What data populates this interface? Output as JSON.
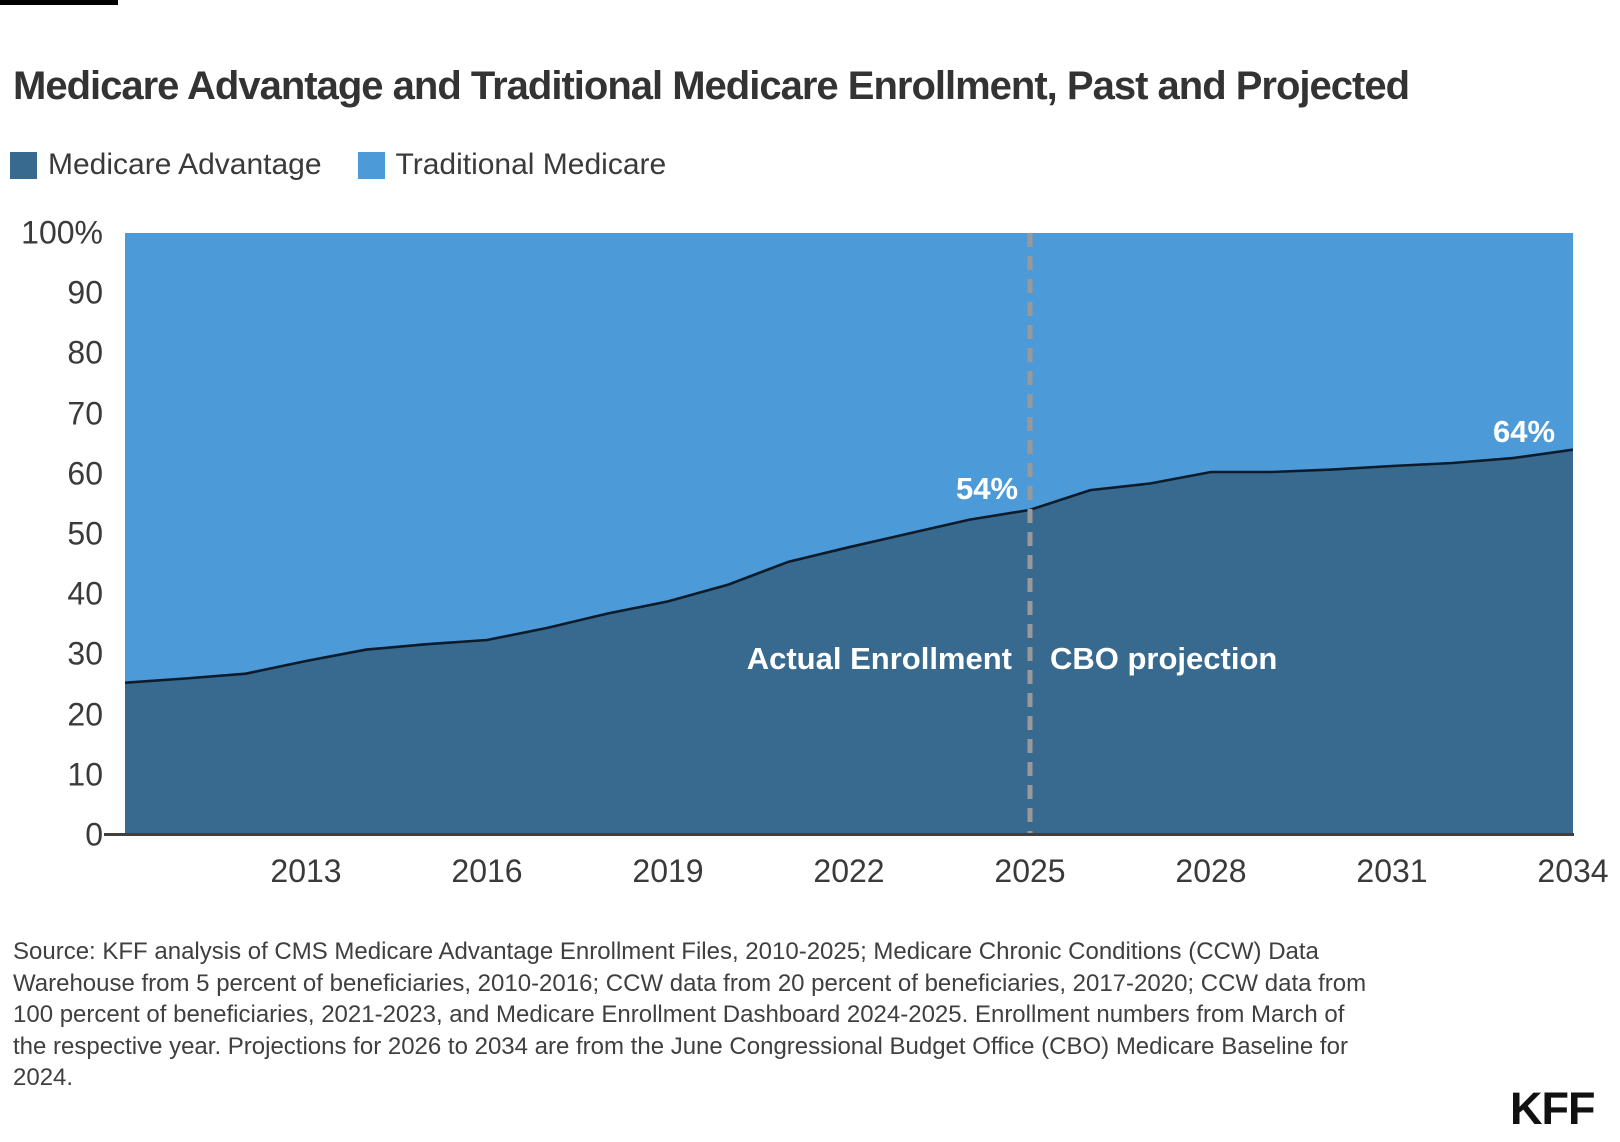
{
  "page": {
    "background": "#ffffff",
    "top_bar_color": "#000000"
  },
  "header": {
    "title": "Medicare Advantage and Traditional Medicare Enrollment, Past and Projected"
  },
  "legend": {
    "items": [
      {
        "label": "Medicare Advantage",
        "color": "#38698f"
      },
      {
        "label": "Traditional Medicare",
        "color": "#4d9ad9"
      }
    ]
  },
  "chart_data": {
    "type": "area",
    "stacked_percent": true,
    "title": "Medicare Advantage and Traditional Medicare Enrollment, Past and Projected",
    "xlabel": "",
    "ylabel": "",
    "ylim": [
      0,
      100
    ],
    "grid": false,
    "legend_position": "top-left",
    "x": [
      2010,
      2011,
      2012,
      2013,
      2014,
      2015,
      2016,
      2017,
      2018,
      2019,
      2020,
      2021,
      2022,
      2023,
      2024,
      2025,
      2026,
      2027,
      2028,
      2029,
      2030,
      2031,
      2032,
      2033,
      2034
    ],
    "series": [
      {
        "name": "Medicare Advantage",
        "color": "#38698f",
        "values": [
          25.3,
          26,
          26.8,
          28.9,
          30.8,
          31.7,
          32.4,
          34.4,
          36.8,
          38.8,
          41.6,
          45.4,
          47.8,
          50.1,
          52.4,
          54,
          57.3,
          58.4,
          60.3,
          60.3,
          60.7,
          61.3,
          61.8,
          62.6,
          64
        ]
      },
      {
        "name": "Traditional Medicare",
        "color": "#4d9ad9",
        "values": [
          74.7,
          74,
          73.2,
          71.1,
          69.2,
          68.3,
          67.6,
          65.6,
          63.2,
          61.2,
          58.4,
          54.6,
          52.2,
          49.9,
          47.6,
          46,
          42.7,
          41.6,
          39.7,
          39.7,
          39.3,
          38.7,
          38.2,
          37.4,
          36
        ]
      }
    ],
    "boundary_line_color": "#0d1c2b",
    "y_ticks": [
      {
        "label": "100%",
        "value": 100
      },
      {
        "label": "90",
        "value": 90
      },
      {
        "label": "80",
        "value": 80
      },
      {
        "label": "70",
        "value": 70
      },
      {
        "label": "60",
        "value": 60
      },
      {
        "label": "50",
        "value": 50
      },
      {
        "label": "40",
        "value": 40
      },
      {
        "label": "30",
        "value": 30
      },
      {
        "label": "20",
        "value": 20
      },
      {
        "label": "10",
        "value": 10
      },
      {
        "label": "0",
        "value": 0
      }
    ],
    "x_ticks": [
      {
        "label": "2013",
        "year": 2013
      },
      {
        "label": "2016",
        "year": 2016
      },
      {
        "label": "2019",
        "year": 2019
      },
      {
        "label": "2022",
        "year": 2022
      },
      {
        "label": "2025",
        "year": 2025
      },
      {
        "label": "2028",
        "year": 2028
      },
      {
        "label": "2031",
        "year": 2031
      },
      {
        "label": "2034",
        "year": 2034
      }
    ],
    "divider": {
      "year": 2025,
      "style": "dashed",
      "color": "#999999"
    },
    "annotations": {
      "pct_2025": "54%",
      "pct_2034": "64%",
      "left_region": "Actual Enrollment",
      "right_region": "CBO projection"
    }
  },
  "source": {
    "lines": [
      "Source: KFF analysis of CMS Medicare Advantage Enrollment Files, 2010-2025; Medicare Chronic Conditions (CCW) Data",
      "Warehouse from 5 percent of beneficiaries, 2010-2016; CCW data from 20 percent of beneficiaries, 2017-2020; CCW data from",
      "100 percent of beneficiaries, 2021-2023, and Medicare Enrollment Dashboard 2024-2025. Enrollment numbers from March of",
      "the respective year. Projections for 2026 to 2034 are from the June Congressional Budget Office (CBO) Medicare Baseline for",
      "2024."
    ]
  },
  "branding": {
    "logo_text": "KFF"
  }
}
